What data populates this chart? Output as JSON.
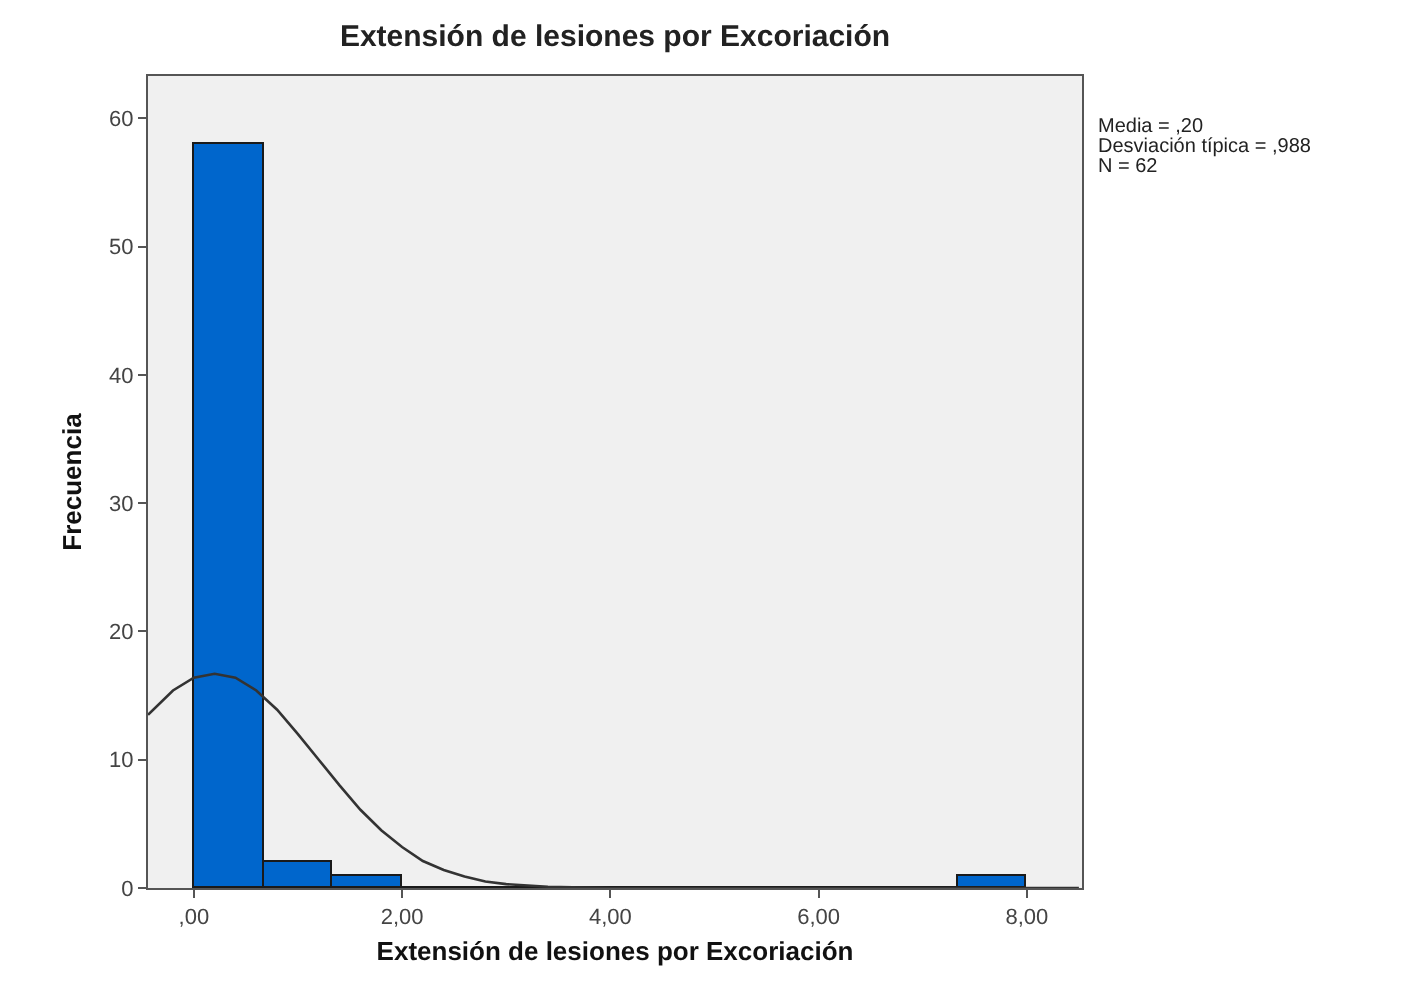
{
  "chart_data": {
    "type": "histogram",
    "title": "Extensión de lesiones por Excoriación",
    "xlabel": "Extensión de lesiones por Excoriación",
    "ylabel": "Frecuencia",
    "bins": [
      0,
      0.6667,
      1.3333,
      2,
      2.6667,
      3.3333,
      4,
      4.6667,
      5.3333,
      6,
      6.6667,
      7.3333,
      8
    ],
    "series": [
      {
        "color": "#0066cc",
        "values": [
          58,
          2,
          1,
          0,
          0,
          0,
          0,
          0,
          0,
          0,
          0,
          1
        ]
      },
      {
        "type": "line",
        "color": "#333333",
        "x": [
          -0.44,
          -0.2,
          0,
          0.2,
          0.4,
          0.6,
          0.8,
          1,
          1.2,
          1.4,
          1.6,
          1.8,
          2,
          2.2,
          2.4,
          2.6,
          2.8,
          3,
          3.4,
          4,
          5,
          6,
          7,
          8,
          8.5
        ],
        "values": [
          13.5,
          15.4,
          16.4,
          16.7,
          16.4,
          15.4,
          13.9,
          12,
          10,
          8,
          6.1,
          4.5,
          3.2,
          2.1,
          1.4,
          0.9,
          0.5,
          0.3,
          0.1,
          0,
          0,
          0,
          0,
          0,
          0
        ]
      }
    ],
    "xlim": [
      -0.44,
      8.53
    ],
    "ylim": [
      0,
      63.3
    ],
    "xticks": [
      {
        "value": 0,
        "label": ",00"
      },
      {
        "value": 2,
        "label": "2,00"
      },
      {
        "value": 4,
        "label": "4,00"
      },
      {
        "value": 6,
        "label": "6,00"
      },
      {
        "value": 8,
        "label": "8,00"
      }
    ],
    "yticks": [
      0,
      10,
      20,
      30,
      40,
      50,
      60
    ],
    "grid": false,
    "marker": "none",
    "annotations": [
      "Media = ,20",
      "Desviación típica = ,988",
      "N = 62"
    ]
  }
}
